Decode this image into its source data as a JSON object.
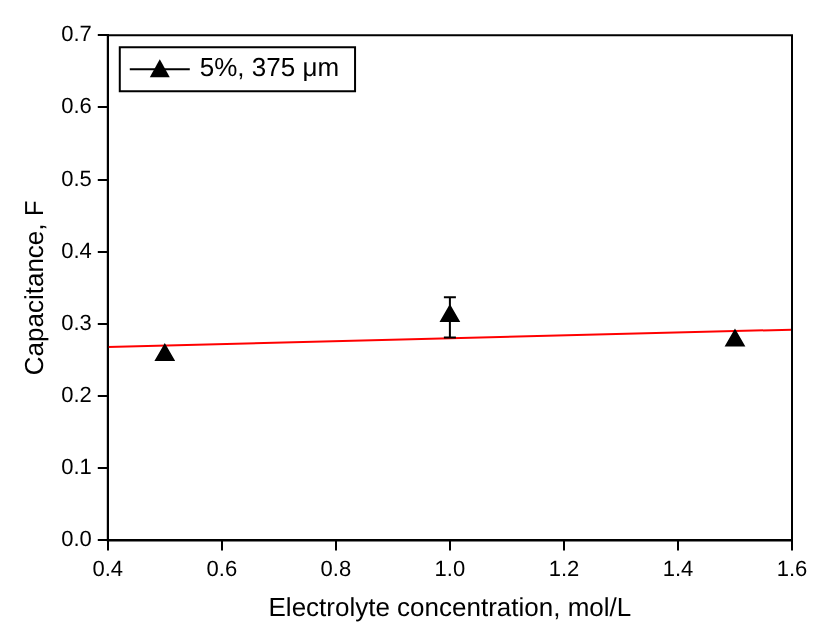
{
  "chart_data": {
    "type": "scatter",
    "xlabel": "Electrolyte concentration, mol/L",
    "ylabel": "Capacitance, F",
    "x": [
      0.5,
      1.0,
      1.5
    ],
    "series": [
      {
        "name": "5%, 375 μm",
        "type": "scatter",
        "color": "#000000",
        "values": [
          0.257,
          0.311,
          0.277
        ],
        "errors": [
          null,
          [
            0.281,
            0.337
          ],
          null
        ]
      },
      {
        "type": "line",
        "x": [
          0.4,
          1.6
        ],
        "color": "#ff0000",
        "values": [
          0.268,
          0.292
        ],
        "marker": "none"
      }
    ],
    "marker": "triangle",
    "legend": "top left",
    "grid": false,
    "xlim": [
      0.4,
      1.6
    ],
    "xticks": [
      0.4,
      0.6,
      0.8,
      "1.0",
      1.2,
      1.4,
      1.6
    ],
    "ylim": [
      0,
      0.7
    ],
    "yticks": [
      "0.0",
      0.1,
      0.2,
      0.3,
      0.4,
      0.5,
      0.6,
      0.7
    ]
  }
}
